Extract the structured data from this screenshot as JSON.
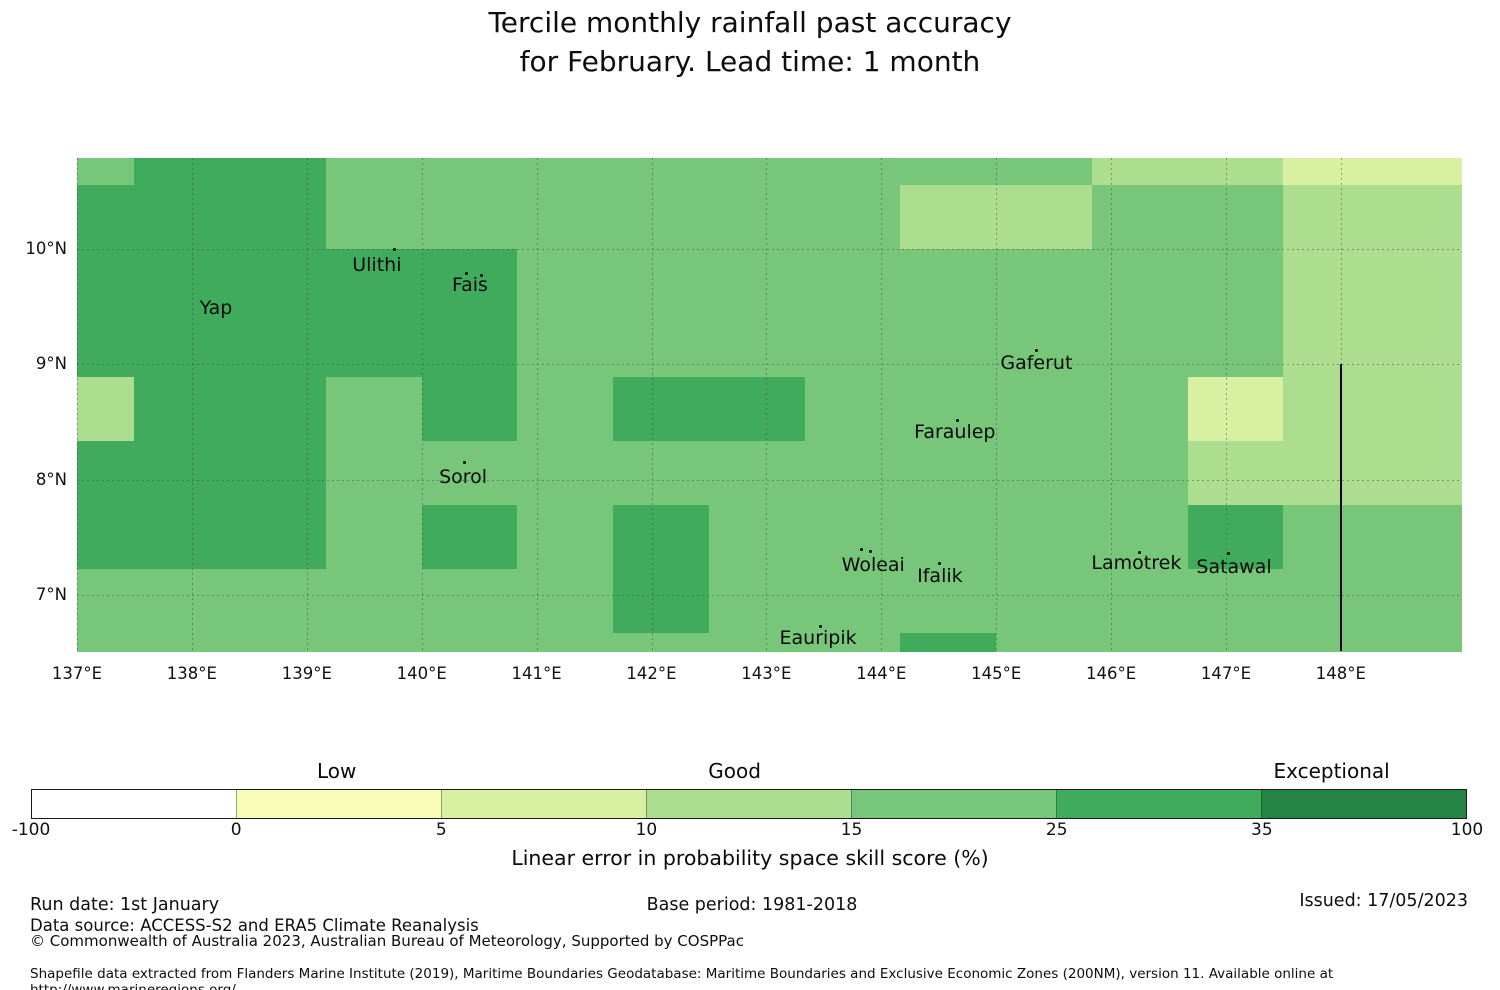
{
  "title": {
    "line1": "Tercile monthly rainfall past accuracy",
    "line2": "for February. Lead time: 1 month"
  },
  "chart_data": {
    "type": "heatmap",
    "subtype": "gridded skill-score map",
    "lon_range": [
      137.0,
      149.05
    ],
    "lat_range": [
      6.51,
      10.79
    ],
    "lon_cell_edges": [
      137.0,
      137.5,
      138.3333,
      139.1667,
      140.0,
      140.8333,
      141.6667,
      142.5,
      143.3333,
      144.1667,
      145.0,
      145.8333,
      146.6667,
      147.5,
      148.3333,
      149.05
    ],
    "lat_cell_edges": [
      10.79,
      10.5556,
      10.0,
      9.4444,
      8.8889,
      8.3333,
      7.7778,
      7.2222,
      6.6667,
      6.51
    ],
    "cells_rows_top_to_bottom": [
      "MDDMMMMMMMMLLVV",
      "DDDMMMMMMLLMMLL",
      "DDDDDMMMMMMMMLL",
      "DDDDDMMMMMMMMLL",
      "LDDMDMDDMMMMVLL",
      "DDDMMMMMMMMMLLL",
      "DDDMDMDMMMMMDMM",
      "MMMMMMDMMMMMMMM",
      "MMMMMMMMMDMMMMM"
    ],
    "bins": {
      "V": {
        "range": "5-10",
        "color": "#d9f0a3"
      },
      "L": {
        "range": "10-15",
        "color": "#addd8e"
      },
      "M": {
        "range": "15-25",
        "color": "#78c679"
      },
      "D": {
        "range": "25-35",
        "color": "#41ab5d"
      }
    },
    "lon_gridlines": [
      137,
      138,
      139,
      140,
      141,
      142,
      143,
      144,
      145,
      146,
      147,
      148
    ],
    "lat_gridlines": [
      10,
      9,
      8,
      7
    ],
    "x_tick_labels": [
      "137°E",
      "138°E",
      "139°E",
      "140°E",
      "141°E",
      "142°E",
      "143°E",
      "144°E",
      "145°E",
      "146°E",
      "147°E",
      "148°E"
    ],
    "y_tick_labels": [
      "10°N",
      "9°N",
      "8°N",
      "7°N"
    ],
    "eez_line": {
      "lon": 148.0,
      "lat_top": 9.0,
      "lat_bottom": 6.51
    },
    "islands": [
      {
        "name": "Yap",
        "label_lon": 138.21,
        "label_lat": 9.49,
        "dots": [],
        "glyph": "yap-outline"
      },
      {
        "name": "Ulithi",
        "label_lon": 139.61,
        "label_lat": 9.86,
        "dots": [
          [
            139.76,
            10.0
          ]
        ]
      },
      {
        "name": "Fais",
        "label_lon": 140.42,
        "label_lat": 9.69,
        "dots": [
          [
            140.39,
            9.79
          ],
          [
            140.52,
            9.77
          ]
        ]
      },
      {
        "name": "Sorol",
        "label_lon": 140.36,
        "label_lat": 8.02,
        "dots": [
          [
            140.37,
            8.15
          ]
        ]
      },
      {
        "name": "Gaferut",
        "label_lon": 145.35,
        "label_lat": 9.01,
        "dots": [
          [
            145.35,
            9.12
          ]
        ]
      },
      {
        "name": "Faraulep",
        "label_lon": 144.64,
        "label_lat": 8.41,
        "dots": [
          [
            144.66,
            8.51
          ]
        ]
      },
      {
        "name": "Woleai",
        "label_lon": 143.93,
        "label_lat": 7.26,
        "dots": [
          [
            143.83,
            7.39
          ],
          [
            143.91,
            7.38
          ]
        ]
      },
      {
        "name": "Ifalik",
        "label_lon": 144.51,
        "label_lat": 7.16,
        "dots": [
          [
            144.51,
            7.27
          ]
        ]
      },
      {
        "name": "Eauripik",
        "label_lon": 143.45,
        "label_lat": 6.63,
        "dots": [
          [
            143.47,
            6.73
          ]
        ]
      },
      {
        "name": "Lamotrek",
        "label_lon": 146.22,
        "label_lat": 7.28,
        "dots": [
          [
            146.25,
            7.37
          ]
        ]
      },
      {
        "name": "Satawal",
        "label_lon": 147.07,
        "label_lat": 7.24,
        "dots": [
          [
            147.02,
            7.36
          ]
        ]
      }
    ],
    "colorbar": {
      "title": "Linear error in probability space skill score (%)",
      "tick_labels": [
        "-100",
        "0",
        "5",
        "10",
        "15",
        "25",
        "35",
        "100"
      ],
      "segment_colors": [
        "#ffffff",
        "#f7fcb9",
        "#d9f0a3",
        "#addd8e",
        "#78c679",
        "#41ab5d",
        "#238443"
      ],
      "category_labels": [
        {
          "label": "Low",
          "t": 1.49
        },
        {
          "label": "Good",
          "t": 3.43
        },
        {
          "label": "Exceptional",
          "t": 6.34
        }
      ]
    }
  },
  "footer": {
    "run_date": "Run date: 1st January",
    "base_period": "Base period: 1981-2018",
    "issued": "Issued: 17/05/2023",
    "data_source": "Data source: ACCESS-S2 and ERA5 Climate Reanalysis",
    "copyright": "© Commonwealth of Australia 2023, Australian Bureau of Meteorology, Supported by COSPPac",
    "shapefile_note": "Shapefile data extracted from Flanders Marine Institute (2019), Maritime Boundaries Geodatabase: Maritime Boundaries and Exclusive Economic Zones (200NM), version 11. Available online at http://www.marineregions.org/."
  }
}
